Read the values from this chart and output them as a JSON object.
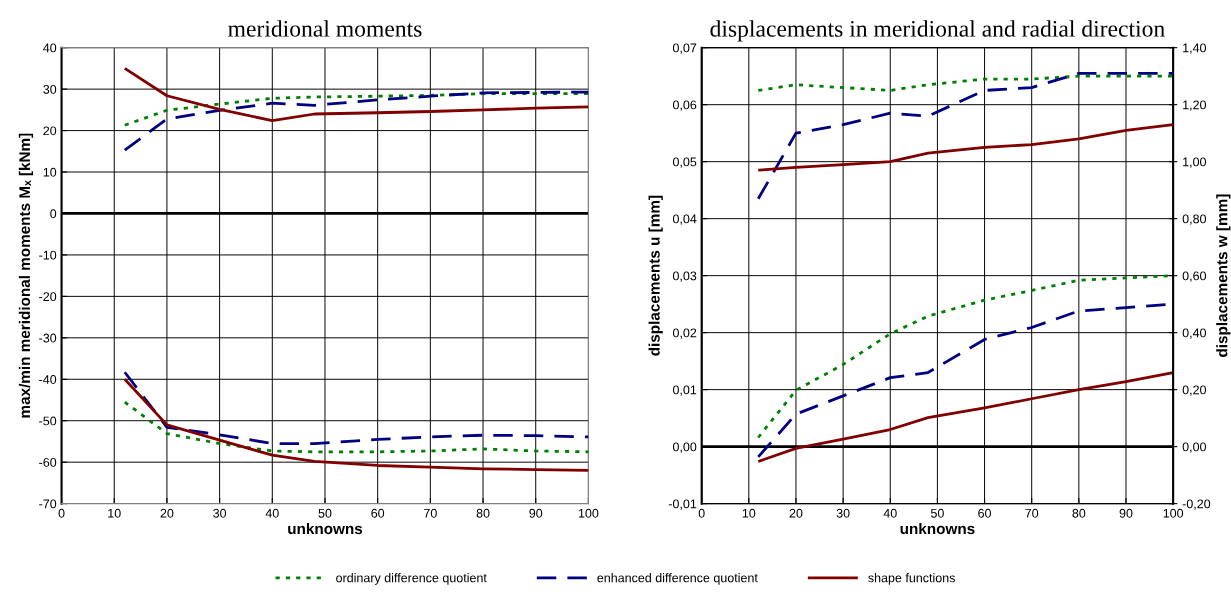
{
  "chart_data": [
    {
      "type": "line",
      "title": "meridional moments",
      "xlabel": "unknowns",
      "ylabel": "max/min meridional moments Mₓ [kNm]",
      "x": [
        12,
        20,
        30,
        40,
        48,
        60,
        70,
        80,
        90,
        100
      ],
      "xlim": [
        0,
        100
      ],
      "xticks": [
        0,
        10,
        20,
        30,
        40,
        50,
        60,
        70,
        80,
        90,
        100
      ],
      "ylim": [
        -70,
        40
      ],
      "yticks": [
        -70,
        -60,
        -50,
        -40,
        -30,
        -20,
        -10,
        0,
        10,
        20,
        30,
        40
      ],
      "grid": true,
      "legend": "bottom",
      "marker": "none",
      "series": [
        {
          "name": "ordinary difference quotient",
          "color": "#008000",
          "line_style": "dotted",
          "values": [
            21.3,
            24.9,
            26.4,
            27.8,
            28.1,
            28.3,
            28.5,
            28.9,
            28.9,
            28.9
          ]
        },
        {
          "name": "enhanced difference quotient",
          "color": "#000080",
          "line_style": "dashed",
          "values": [
            15.3,
            22.8,
            24.9,
            26.6,
            26.1,
            27.4,
            28.3,
            29.1,
            29.2,
            29.3
          ]
        },
        {
          "name": "shape functions",
          "color": "#800000",
          "line_style": "solid",
          "values": [
            35.0,
            28.4,
            25.1,
            22.4,
            24.0,
            24.3,
            24.6,
            25.0,
            25.4,
            25.7
          ]
        },
        {
          "color": "#008000",
          "line_style": "dotted",
          "values": [
            -45.5,
            -53.1,
            -55.5,
            -57.3,
            -57.5,
            -57.5,
            -57.3,
            -56.8,
            -57.3,
            -57.5
          ]
        },
        {
          "color": "#000080",
          "line_style": "dashed",
          "values": [
            -38.3,
            -51.6,
            -53.4,
            -55.5,
            -55.5,
            -54.5,
            -53.9,
            -53.5,
            -53.6,
            -53.9
          ]
        },
        {
          "color": "#800000",
          "line_style": "solid",
          "values": [
            -40.0,
            -51.0,
            -54.7,
            -58.3,
            -59.8,
            -60.8,
            -61.2,
            -61.6,
            -61.8,
            -62.0
          ]
        }
      ]
    },
    {
      "type": "line",
      "title": "displacements in meridional and radial direction",
      "xlabel": "unknowns",
      "ylabel": "displacements u [mm]",
      "y2label": "displacements w [mm]",
      "x": [
        12,
        20,
        30,
        40,
        48,
        60,
        70,
        80,
        90,
        100
      ],
      "xlim": [
        0,
        100
      ],
      "xticks": [
        0,
        10,
        20,
        30,
        40,
        50,
        60,
        70,
        80,
        90,
        100
      ],
      "ylim": [
        -0.01,
        0.07
      ],
      "yticks": [
        {
          "value": -0.01,
          "label": "-0,01"
        },
        {
          "value": 0,
          "label": "0,00"
        },
        {
          "value": 0.01,
          "label": "0,01"
        },
        {
          "value": 0.02,
          "label": "0,02"
        },
        {
          "value": 0.03,
          "label": "0,03"
        },
        {
          "value": 0.04,
          "label": "0,04"
        },
        {
          "value": 0.05,
          "label": "0,05"
        },
        {
          "value": 0.06,
          "label": "0,06"
        },
        {
          "value": 0.07,
          "label": "0,07"
        }
      ],
      "y2lim": [
        -0.2,
        1.4
      ],
      "y2ticks": [
        {
          "value": -0.2,
          "label": "-0,20"
        },
        {
          "value": 0,
          "label": "0,00"
        },
        {
          "value": 0.2,
          "label": "0,20"
        },
        {
          "value": 0.4,
          "label": "0,40"
        },
        {
          "value": 0.6,
          "label": "0,60"
        },
        {
          "value": 0.8,
          "label": "0,80"
        },
        {
          "value": 1.0,
          "label": "1,00"
        },
        {
          "value": 1.2,
          "label": "1,20"
        },
        {
          "value": 1.4,
          "label": "1,40"
        }
      ],
      "grid": true,
      "marker": "none",
      "series": [
        {
          "color": "#008000",
          "line_style": "dotted",
          "values": [
            0.0016,
            0.0099,
            0.0144,
            0.0198,
            0.0229,
            0.0257,
            0.0274,
            0.0292,
            0.0296,
            0.03
          ]
        },
        {
          "color": "#000080",
          "line_style": "dashed",
          "values": [
            -0.0018,
            0.0057,
            0.0089,
            0.0121,
            0.013,
            0.0188,
            0.0209,
            0.0238,
            0.0244,
            0.025
          ]
        },
        {
          "color": "#800000",
          "line_style": "solid",
          "values": [
            -0.0026,
            -0.0003,
            0.0013,
            0.003,
            0.0051,
            0.0068,
            0.0084,
            0.01,
            0.0114,
            0.013
          ]
        },
        {
          "color": "#008000",
          "line_style": "dotted",
          "axis": "y2",
          "values": [
            1.25,
            1.27,
            1.26,
            1.25,
            1.27,
            1.29,
            1.29,
            1.3,
            1.3,
            1.3
          ]
        },
        {
          "color": "#000080",
          "line_style": "dashed",
          "axis": "y2",
          "values": [
            0.87,
            1.1,
            1.13,
            1.17,
            1.16,
            1.25,
            1.26,
            1.31,
            1.31,
            1.31
          ]
        },
        {
          "color": "#800000",
          "line_style": "solid",
          "axis": "y2",
          "values": [
            0.97,
            0.98,
            0.99,
            1.0,
            1.03,
            1.05,
            1.06,
            1.08,
            1.11,
            1.13
          ]
        }
      ]
    }
  ]
}
